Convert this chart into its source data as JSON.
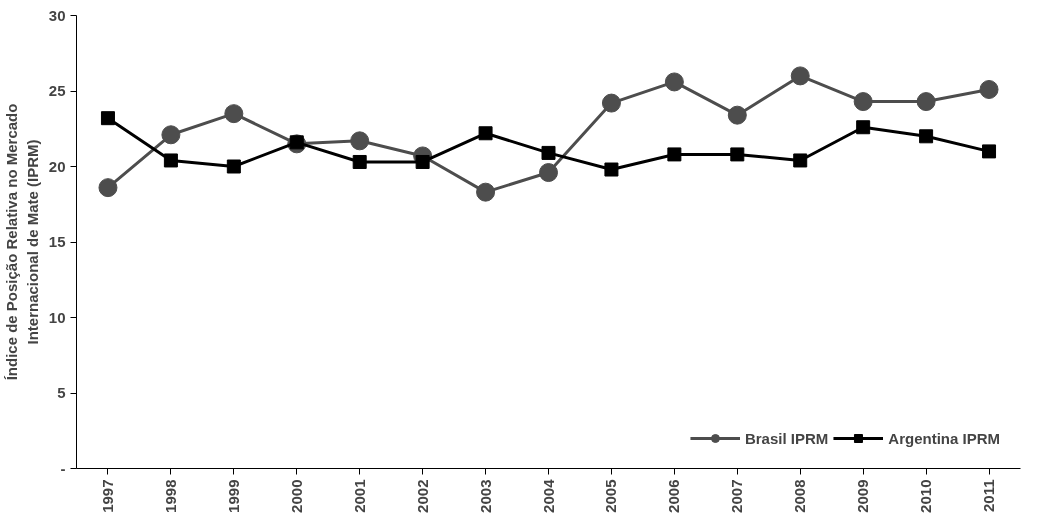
{
  "chart_data": {
    "type": "line",
    "ylabel": "Índice de Posição Relativa no Mercado Internacional de Mate (IPRM)",
    "categories": [
      "1997",
      "1998",
      "1999",
      "2000",
      "2001",
      "2002",
      "2003",
      "2004",
      "2005",
      "2006",
      "2007",
      "2008",
      "2009",
      "2010",
      "2011"
    ],
    "series": [
      {
        "name": "Brasil IPRM",
        "color": "#4d4d4d",
        "marker": "circle",
        "values": [
          18.6,
          22.1,
          23.5,
          21.5,
          21.7,
          20.7,
          18.3,
          19.6,
          24.2,
          25.6,
          23.4,
          26.0,
          24.3,
          24.3,
          25.1
        ]
      },
      {
        "name": "Argentina IPRM",
        "color": "#000000",
        "marker": "square",
        "values": [
          23.2,
          20.4,
          20.0,
          21.6,
          20.3,
          20.3,
          22.2,
          20.9,
          19.8,
          20.8,
          20.8,
          20.4,
          22.6,
          22.0,
          21.0
        ]
      }
    ],
    "ylim": [
      0,
      30
    ],
    "yticks": [
      {
        "value": 0,
        "label": "-"
      },
      5,
      10,
      15,
      20,
      25,
      30
    ],
    "grid": false,
    "legend": "bottom right",
    "line_style": "solid"
  }
}
